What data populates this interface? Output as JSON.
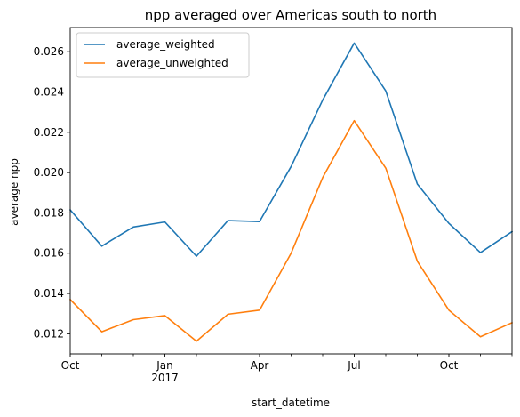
{
  "chart_data": {
    "type": "line",
    "title": "npp averaged over Americas south to north",
    "xlabel": "start_datetime",
    "ylabel": "average npp",
    "x": [
      "2016-10",
      "2016-11",
      "2016-12",
      "2017-01",
      "2017-02",
      "2017-03",
      "2017-04",
      "2017-05",
      "2017-06",
      "2017-07",
      "2017-08",
      "2017-09",
      "2017-10",
      "2017-11",
      "2017-12"
    ],
    "series": [
      {
        "name": "average_weighted",
        "color": "#1f77b4",
        "values": [
          0.01815,
          0.01635,
          0.0173,
          0.01755,
          0.01585,
          0.01762,
          0.01757,
          0.0203,
          0.0236,
          0.02643,
          0.02405,
          0.01943,
          0.01748,
          0.01603,
          0.01707
        ]
      },
      {
        "name": "average_unweighted",
        "color": "#ff7f0e",
        "values": [
          0.0137,
          0.0121,
          0.0127,
          0.0129,
          0.01163,
          0.01297,
          0.01317,
          0.016,
          0.01975,
          0.02258,
          0.02022,
          0.0156,
          0.01317,
          0.01185,
          0.01255
        ]
      }
    ],
    "ylim": [
      0.011,
      0.0272
    ],
    "yticks": [
      0.012,
      0.014,
      0.016,
      0.018,
      0.02,
      0.022,
      0.024,
      0.026
    ],
    "ytick_labels": [
      "0.012",
      "0.014",
      "0.016",
      "0.018",
      "0.020",
      "0.022",
      "0.024",
      "0.026"
    ],
    "xticks_major": [
      {
        "x": "2016-10",
        "label": "Oct",
        "sublabel": ""
      },
      {
        "x": "2017-01",
        "label": "Jan",
        "sublabel": "2017"
      },
      {
        "x": "2017-04",
        "label": "Apr",
        "sublabel": ""
      },
      {
        "x": "2017-07",
        "label": "Jul",
        "sublabel": ""
      },
      {
        "x": "2017-10",
        "label": "Oct",
        "sublabel": ""
      }
    ],
    "grid": false,
    "legend_position": "top-left"
  }
}
